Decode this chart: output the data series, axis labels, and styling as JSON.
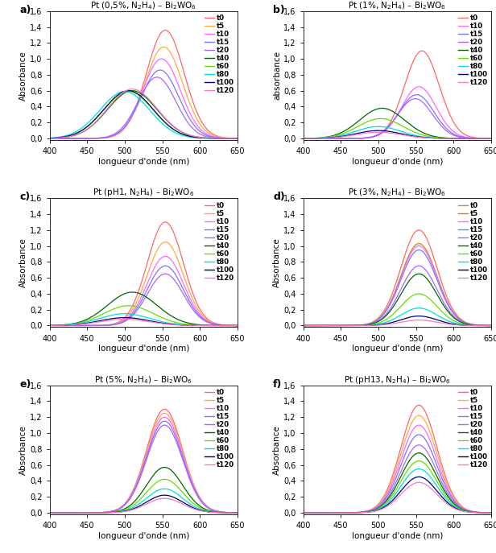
{
  "panels": [
    {
      "label": "a)",
      "title": "Pt (0,5%, N$_2$H$_4$) – Bi$_2$WO$_6$",
      "ylabel": "Absorbance",
      "times": [
        "t0",
        "t5",
        "t10",
        "t15",
        "t20",
        "t40",
        "t60",
        "t80",
        "t100",
        "t120"
      ],
      "peaks_nm": [
        554,
        552,
        549,
        547,
        543,
        510,
        505,
        500,
        505,
        510
      ],
      "peak_abs": [
        1.36,
        1.15,
        1.0,
        0.86,
        0.77,
        0.6,
        0.59,
        0.59,
        0.6,
        0.62
      ],
      "widths": [
        25,
        25,
        25,
        25,
        25,
        33,
        33,
        33,
        33,
        33
      ],
      "colors": [
        "#ff6666",
        "#ffaa44",
        "#ff66ff",
        "#7777ff",
        "#aa66ff",
        "#006600",
        "#66dd00",
        "#00dddd",
        "#000077",
        "#ff77bb"
      ]
    },
    {
      "label": "b)",
      "title": "Pt (1%, N$_2$H$_4$) – Bi$_2$WO$_6$",
      "ylabel": "absorbance",
      "times": [
        "t0",
        "t10",
        "t15",
        "t20",
        "t40",
        "t60",
        "t80",
        "t100",
        "t120"
      ],
      "peaks_nm": [
        558,
        554,
        551,
        549,
        505,
        503,
        500,
        500,
        500
      ],
      "peak_abs": [
        1.1,
        0.65,
        0.55,
        0.5,
        0.38,
        0.25,
        0.15,
        0.1,
        0.08
      ],
      "widths": [
        23,
        23,
        23,
        23,
        30,
        30,
        30,
        30,
        30
      ],
      "colors": [
        "#ff6666",
        "#ff66ff",
        "#7777ff",
        "#aa66ff",
        "#006600",
        "#66dd00",
        "#00dddd",
        "#000077",
        "#ff77bb"
      ]
    },
    {
      "label": "c)",
      "title": "Pt (pH1, N$_2$H$_4$) – Bi$_2$WO$_6$",
      "ylabel": "Absorbance",
      "times": [
        "t0",
        "t5",
        "t10",
        "t15",
        "t20",
        "t40",
        "t60",
        "t80",
        "t100",
        "t120"
      ],
      "peaks_nm": [
        554,
        554,
        554,
        554,
        554,
        510,
        505,
        500,
        500,
        500
      ],
      "peak_abs": [
        1.3,
        1.05,
        0.87,
        0.75,
        0.65,
        0.42,
        0.25,
        0.15,
        0.1,
        0.08
      ],
      "widths": [
        24,
        24,
        24,
        24,
        24,
        33,
        33,
        33,
        33,
        33
      ],
      "colors": [
        "#ff6666",
        "#ffaa44",
        "#ff66ff",
        "#7777ff",
        "#aa66ff",
        "#006600",
        "#66dd00",
        "#00dddd",
        "#000077",
        "#ff77bb"
      ]
    },
    {
      "label": "d)",
      "title": "Pt (3%, N$_2$H$_4$) – Bi$_2$WO$_6$",
      "ylabel": "Absorbance",
      "times": [
        "t0",
        "t5",
        "t10",
        "t15",
        "t20",
        "t40",
        "t60",
        "t80",
        "t100",
        "t120"
      ],
      "peaks_nm": [
        554,
        554,
        554,
        554,
        554,
        554,
        554,
        554,
        554,
        554
      ],
      "peak_abs": [
        1.2,
        1.03,
        1.0,
        0.95,
        0.75,
        0.65,
        0.4,
        0.22,
        0.12,
        0.07
      ],
      "widths": [
        24,
        24,
        24,
        24,
        24,
        24,
        24,
        24,
        24,
        24
      ],
      "colors": [
        "#ff6666",
        "#cc8800",
        "#ff66ff",
        "#7777ff",
        "#aa66ff",
        "#006600",
        "#66dd00",
        "#00dddd",
        "#000077",
        "#ff77bb"
      ]
    },
    {
      "label": "e)",
      "title": "Pt (5%, N$_2$H$_4$) – Bi$_2$WO$_6$",
      "ylabel": "Absorbance",
      "times": [
        "t0",
        "t5",
        "t10",
        "t15",
        "t20",
        "t40",
        "t60",
        "t80",
        "t100",
        "t120"
      ],
      "peaks_nm": [
        553,
        553,
        553,
        553,
        553,
        553,
        553,
        553,
        553,
        553
      ],
      "peak_abs": [
        1.3,
        1.25,
        1.2,
        1.15,
        1.1,
        0.57,
        0.42,
        0.3,
        0.22,
        0.18
      ],
      "widths": [
        24,
        24,
        24,
        24,
        24,
        24,
        24,
        24,
        24,
        24
      ],
      "colors": [
        "#ff6666",
        "#ffaa44",
        "#ff66ff",
        "#7777ff",
        "#aa66ff",
        "#006600",
        "#66dd00",
        "#00dddd",
        "#000077",
        "#ff77bb"
      ]
    },
    {
      "label": "f)",
      "title": "Pt (pH13, N$_2$H$_4$) – Bi$_2$WO$_6$",
      "ylabel": "Absorbance",
      "times": [
        "t0",
        "t5",
        "t10",
        "t15",
        "t20",
        "t40",
        "t60",
        "t80",
        "t100",
        "t120"
      ],
      "peaks_nm": [
        554,
        554,
        554,
        554,
        554,
        554,
        554,
        554,
        554,
        554
      ],
      "peak_abs": [
        1.35,
        1.22,
        1.1,
        0.98,
        0.85,
        0.75,
        0.65,
        0.55,
        0.45,
        0.38
      ],
      "widths": [
        24,
        24,
        24,
        24,
        24,
        24,
        24,
        24,
        24,
        24
      ],
      "colors": [
        "#ff6666",
        "#ffaa44",
        "#ff66ff",
        "#7777ff",
        "#aa66ff",
        "#006600",
        "#66dd00",
        "#00dddd",
        "#000077",
        "#ff77bb"
      ]
    }
  ],
  "xlabel": "longueur d'onde (nm)",
  "xlim": [
    400,
    650
  ],
  "ylim": [
    0.0,
    1.6
  ],
  "yticks": [
    0.0,
    0.2,
    0.4,
    0.6,
    0.8,
    1.0,
    1.2,
    1.4,
    1.6
  ],
  "xticks": [
    400,
    450,
    500,
    550,
    600,
    650
  ],
  "background_color": "#ffffff"
}
